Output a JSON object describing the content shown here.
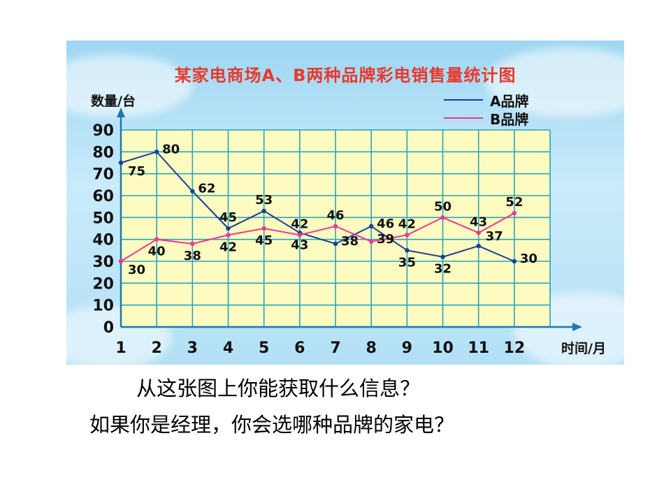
{
  "chart_data": {
    "type": "line",
    "title": "某家电商场A、B两种品牌彩电销售量统计图",
    "ylabel": "数量/台",
    "xlabel": "时间/月",
    "categories": [
      "1",
      "2",
      "3",
      "4",
      "5",
      "6",
      "7",
      "8",
      "9",
      "10",
      "11",
      "12"
    ],
    "yticks": [
      "0",
      "10",
      "20",
      "30",
      "40",
      "50",
      "60",
      "70",
      "80",
      "90"
    ],
    "ylim": [
      0,
      90
    ],
    "grid": true,
    "legend_position": "top-right",
    "series": [
      {
        "name": "A品牌",
        "color": "#1b3d9a",
        "values": [
          75,
          80,
          62,
          45,
          53,
          43,
          38,
          46,
          35,
          32,
          37,
          30
        ]
      },
      {
        "name": "B品牌",
        "color": "#f0388e",
        "values": [
          30,
          40,
          38,
          42,
          45,
          42,
          46,
          39,
          42,
          50,
          43,
          52
        ]
      }
    ],
    "data_labels": [
      {
        "text": "75",
        "series": 0,
        "index": 0,
        "pos": "below-right"
      },
      {
        "text": "80",
        "series": 0,
        "index": 1,
        "pos": "right"
      },
      {
        "text": "62",
        "series": 0,
        "index": 2,
        "pos": "right"
      },
      {
        "text": "45",
        "series": 0,
        "index": 3,
        "pos": "above"
      },
      {
        "text": "53",
        "series": 0,
        "index": 4,
        "pos": "above"
      },
      {
        "text": "43",
        "series": 0,
        "index": 5,
        "pos": "below"
      },
      {
        "text": "38",
        "series": 0,
        "index": 6,
        "pos": "right"
      },
      {
        "text": "46",
        "series": 0,
        "index": 7,
        "pos": "right"
      },
      {
        "text": "35",
        "series": 0,
        "index": 8,
        "pos": "below"
      },
      {
        "text": "32",
        "series": 0,
        "index": 9,
        "pos": "below"
      },
      {
        "text": "37",
        "series": 0,
        "index": 10,
        "pos": "above-right"
      },
      {
        "text": "30",
        "series": 0,
        "index": 11,
        "pos": "right"
      },
      {
        "text": "30",
        "series": 1,
        "index": 0,
        "pos": "below-right"
      },
      {
        "text": "40",
        "series": 1,
        "index": 1,
        "pos": "below"
      },
      {
        "text": "38",
        "series": 1,
        "index": 2,
        "pos": "below"
      },
      {
        "text": "42",
        "series": 1,
        "index": 3,
        "pos": "below"
      },
      {
        "text": "45",
        "series": 1,
        "index": 4,
        "pos": "below"
      },
      {
        "text": "42",
        "series": 1,
        "index": 5,
        "pos": "above"
      },
      {
        "text": "46",
        "series": 1,
        "index": 6,
        "pos": "above"
      },
      {
        "text": "39",
        "series": 1,
        "index": 7,
        "pos": "right"
      },
      {
        "text": "42",
        "series": 1,
        "index": 8,
        "pos": "above"
      },
      {
        "text": "50",
        "series": 1,
        "index": 9,
        "pos": "above"
      },
      {
        "text": "43",
        "series": 1,
        "index": 10,
        "pos": "above"
      },
      {
        "text": "52",
        "series": 1,
        "index": 11,
        "pos": "above"
      }
    ],
    "colors": {
      "plot_bg": "#fdfbc0",
      "grid": "#2aa3bf",
      "axis": "#1979b3",
      "title": "#e8382c"
    }
  },
  "captions": {
    "line1": "从这张图上你能获取什么信息？",
    "line2": "如果你是经理，你会选哪种品牌的家电？"
  }
}
